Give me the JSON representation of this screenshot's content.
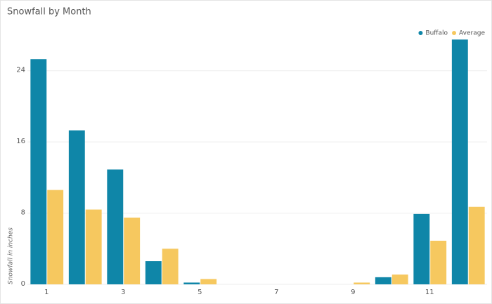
{
  "chart_data": {
    "type": "bar",
    "title": "Snowfall by Month",
    "y_label": "Snowfall in inches",
    "categories": [
      1,
      null,
      3,
      null,
      5,
      null,
      7,
      null,
      9,
      null,
      11,
      null
    ],
    "series": [
      {
        "name": "Buffalo",
        "color": "#0f86a8",
        "values": [
          25.3,
          17.3,
          12.9,
          2.6,
          0.2,
          0,
          0,
          0,
          0,
          0.8,
          7.9,
          27.5
        ]
      },
      {
        "name": "Average",
        "color": "#f6c85f",
        "values": [
          10.6,
          8.4,
          7.5,
          4.0,
          0.6,
          0,
          0,
          0,
          0.2,
          1.1,
          4.9,
          8.7
        ]
      }
    ],
    "ylim": [
      0,
      28
    ],
    "yticks": [
      0,
      8,
      16,
      24
    ],
    "grid": true,
    "legend": "top-right"
  }
}
